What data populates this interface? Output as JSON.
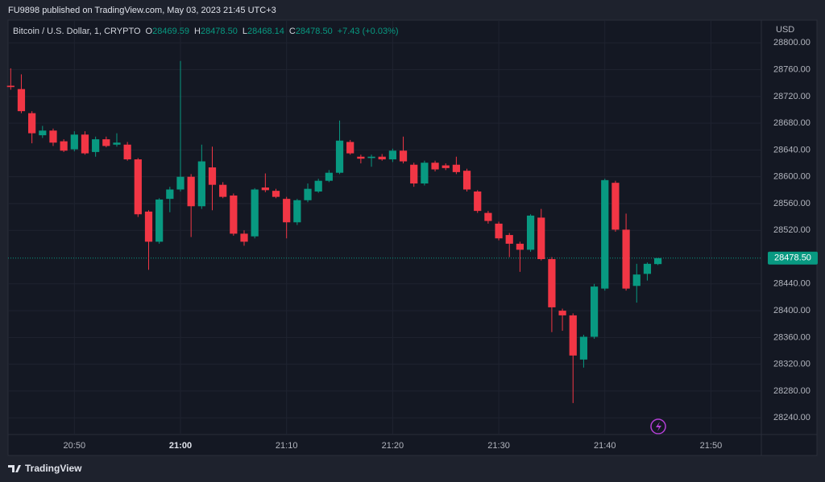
{
  "header": {
    "publisher": "FU9898 published on TradingView.com, May 03, 2023 21:45 UTC+3"
  },
  "footer": {
    "brand": "TradingView"
  },
  "chart_data": {
    "type": "candlestick",
    "title": "Bitcoin / U.S. Dollar, 1, CRYPTO",
    "legend": {
      "o_label": "O",
      "o": "28469.59",
      "h_label": "H",
      "h": "28478.50",
      "l_label": "L",
      "l": "28468.14",
      "c_label": "C",
      "c": "28478.50",
      "change": "+7.43 (+0.03%)"
    },
    "y_unit": "USD",
    "up_color": "#089981",
    "down_color": "#f23645",
    "x": [
      "20:44",
      "20:45",
      "20:46",
      "20:47",
      "20:48",
      "20:49",
      "20:50",
      "20:51",
      "20:52",
      "20:53",
      "20:54",
      "20:55",
      "20:56",
      "20:57",
      "20:58",
      "20:59",
      "21:00",
      "21:01",
      "21:02",
      "21:03",
      "21:04",
      "21:05",
      "21:06",
      "21:07",
      "21:08",
      "21:09",
      "21:10",
      "21:11",
      "21:12",
      "21:13",
      "21:14",
      "21:15",
      "21:16",
      "21:17",
      "21:18",
      "21:19",
      "21:20",
      "21:21",
      "21:22",
      "21:23",
      "21:24",
      "21:25",
      "21:26",
      "21:27",
      "21:28",
      "21:29",
      "21:30",
      "21:31",
      "21:32",
      "21:33",
      "21:34",
      "21:35",
      "21:36",
      "21:37",
      "21:38",
      "21:39",
      "21:40",
      "21:41",
      "21:42",
      "21:43",
      "21:44",
      "21:45"
    ],
    "open": [
      28736,
      28731,
      28695,
      28662,
      28669,
      28653,
      28641,
      28663,
      28637,
      28656,
      28648,
      28648,
      28626,
      28548,
      28503,
      28567,
      28581,
      28600,
      28556,
      28614,
      28588,
      28572,
      28515,
      28511,
      28584,
      28579,
      28567,
      28532,
      28565,
      28578,
      28594,
      28606,
      28652,
      28630,
      28628,
      28630,
      28626,
      28639,
      28618,
      28590,
      28621,
      28617,
      28618,
      28609,
      28578,
      28546,
      28530,
      28513,
      28500,
      28491,
      28539,
      28477,
      28400,
      28393,
      28327,
      28361,
      28433,
      28591,
      28521,
      28437,
      28455,
      28469.59
    ],
    "high": [
      28762,
      28753,
      28698,
      28676,
      28672,
      28656,
      28668,
      28668,
      28660,
      28660,
      28665,
      28652,
      28628,
      28550,
      28568,
      28585,
      28773,
      28604,
      28648,
      28645,
      28592,
      28575,
      28520,
      28583,
      28605,
      28582,
      28570,
      28567,
      28590,
      28597,
      28610,
      28684,
      28655,
      28633,
      28633,
      28634,
      28642,
      28660,
      28621,
      28624,
      28624,
      28620,
      28630,
      28612,
      28580,
      28549,
      28533,
      28516,
      28503,
      28544,
      28552,
      28480,
      28403,
      28396,
      28364,
      28440,
      28597,
      28594,
      28545,
      28470,
      28472,
      28478.5
    ],
    "low": [
      28730,
      28695,
      28650,
      28658,
      28646,
      28637,
      28638,
      28633,
      28630,
      28644,
      28645,
      28624,
      28540,
      28461,
      28500,
      28547,
      28578,
      28510,
      28552,
      28550,
      28568,
      28512,
      28497,
      28508,
      28577,
      28568,
      28508,
      28528,
      28562,
      28576,
      28592,
      28604,
      28633,
      28620,
      28615,
      28624,
      28622,
      28620,
      28585,
      28587,
      28608,
      28610,
      28604,
      28578,
      28546,
      28530,
      28505,
      28480,
      28458,
      28488,
      28475,
      28368,
      28370,
      28262,
      28315,
      28358,
      28430,
      28518,
      28430,
      28412,
      28445,
      28468.14
    ],
    "close": [
      28734,
      28698,
      28665,
      28669,
      28651,
      28639,
      28663,
      28635,
      28656,
      28646,
      28651,
      28626,
      28544,
      28503,
      28566,
      28581,
      28600,
      28556,
      28623,
      28588,
      28570,
      28515,
      28503,
      28581,
      28580,
      28570,
      28532,
      28565,
      28582,
      28594,
      28606,
      28654,
      28635,
      28627,
      28630,
      28626,
      28639,
      28623,
      28590,
      28621,
      28611,
      28613,
      28607,
      28581,
      28549,
      28534,
      28508,
      28500,
      28491,
      28542,
      28477,
      28405,
      28393,
      28333,
      28361,
      28436,
      28595,
      28521,
      28433,
      28454,
      28470,
      28478.5
    ],
    "xlim": [
      "20:43:45",
      "21:54:45"
    ],
    "xticks": [
      "20:50",
      "21:00",
      "21:10",
      "21:20",
      "21:30",
      "21:40",
      "21:50"
    ],
    "ylim": [
      28215,
      28834
    ],
    "yticks": [
      {
        "value": 28240,
        "label": "28240.00"
      },
      {
        "value": 28280,
        "label": "28280.00"
      },
      {
        "value": 28320,
        "label": "28320.00"
      },
      {
        "value": 28360,
        "label": "28360.00"
      },
      {
        "value": 28400,
        "label": "28400.00"
      },
      {
        "value": 28440,
        "label": "28440.00"
      },
      {
        "value": 28520,
        "label": "28520.00"
      },
      {
        "value": 28560,
        "label": "28560.00"
      },
      {
        "value": 28600,
        "label": "28600.00"
      },
      {
        "value": 28640,
        "label": "28640.00"
      },
      {
        "value": 28680,
        "label": "28680.00"
      },
      {
        "value": 28720,
        "label": "28720.00"
      },
      {
        "value": 28760,
        "label": "28760.00"
      },
      {
        "value": 28800,
        "label": "28800.00"
      }
    ],
    "last_price": {
      "value": 28478.5,
      "label": "28478.50"
    },
    "grid": true
  }
}
